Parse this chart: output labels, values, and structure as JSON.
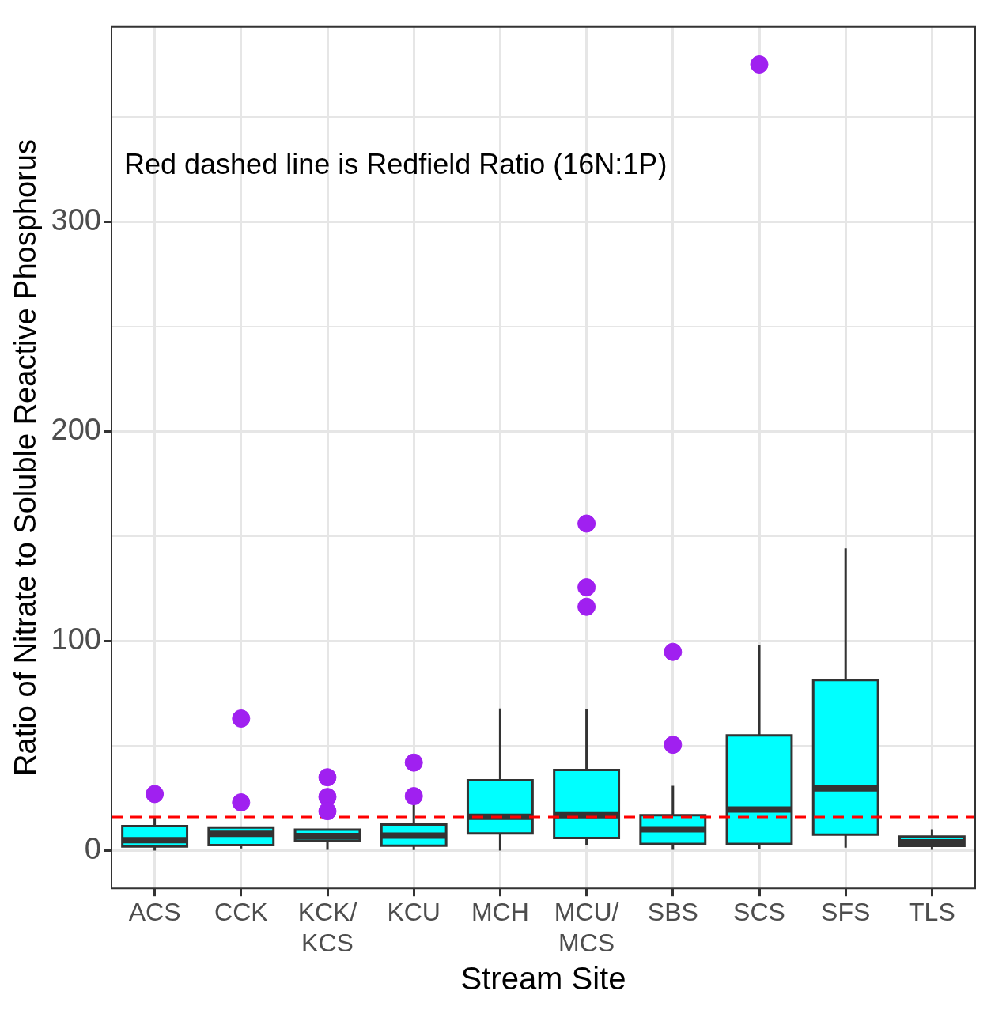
{
  "chart_data": {
    "type": "box",
    "xlabel": "Stream Site",
    "ylabel": "Ratio of Nitrate to Soluble Reactive Phosphorus",
    "categories": [
      "ACS",
      "CCK",
      "KCK/\nKCS",
      "KCU",
      "MCH",
      "MCU/\nMCS",
      "SBS",
      "SCS",
      "SFS",
      "TLS"
    ],
    "ylim": [
      -18,
      393
    ],
    "yticks": [
      0,
      {
        "value": 50,
        "label": null
      },
      100,
      {
        "value": 150,
        "label": null
      },
      200,
      {
        "value": 250,
        "label": null
      },
      300,
      {
        "value": 350,
        "label": null
      }
    ],
    "grid": true,
    "legend": false,
    "series": [
      {
        "type": "box",
        "color": "#00ffff",
        "boxes": [
          {
            "low": 0,
            "q1": 2,
            "median": 5,
            "q3": 11.7,
            "high": 16
          },
          {
            "low": 1,
            "q1": 2.6,
            "median": 8,
            "q3": 11,
            "high": 11
          },
          {
            "low": 0.4,
            "q1": 4.8,
            "median": 7,
            "q3": 10,
            "high": 10
          },
          {
            "low": 0.3,
            "q1": 2.4,
            "median": 7.2,
            "q3": 12.4,
            "high": 23
          },
          {
            "low": 0,
            "q1": 8.2,
            "median": 16.1,
            "q3": 33.6,
            "high": 67.8
          },
          {
            "low": 2.5,
            "q1": 6,
            "median": 16.9,
            "q3": 38.5,
            "high": 67.3
          },
          {
            "low": 0.4,
            "q1": 3.2,
            "median": 10.2,
            "q3": 16.9,
            "high": 30.9
          },
          {
            "low": 0.9,
            "q1": 3.2,
            "median": 19.6,
            "q3": 55,
            "high": 97.9
          },
          {
            "low": 1.4,
            "q1": 7.6,
            "median": 29.7,
            "q3": 81.4,
            "high": 144.2
          },
          {
            "low": 0.4,
            "q1": 2.3,
            "median": 4,
            "q3": 6.7,
            "high": 10.2
          }
        ]
      },
      {
        "type": "scatter",
        "color": "#a020f0",
        "x": [
          "ACS",
          "CCK",
          "CCK",
          "KCK/\nKCS",
          "KCK/\nKCS",
          "KCK/\nKCS",
          "KCU",
          "KCU",
          "MCU/\nMCS",
          "MCU/\nMCS",
          "MCU/\nMCS",
          "SBS",
          "SBS",
          "SCS"
        ],
        "values": [
          27,
          63,
          23,
          35,
          25.6,
          18.8,
          42,
          26,
          156,
          125.6,
          116.3,
          94.8,
          50.5,
          375
        ]
      }
    ],
    "ref_lines": [
      {
        "axis": "y",
        "value": 16,
        "color": "#ff0000",
        "line_style": "dashed"
      }
    ],
    "annotations": [
      "Red dashed line is Redfield Ratio (16N:1P)"
    ]
  }
}
